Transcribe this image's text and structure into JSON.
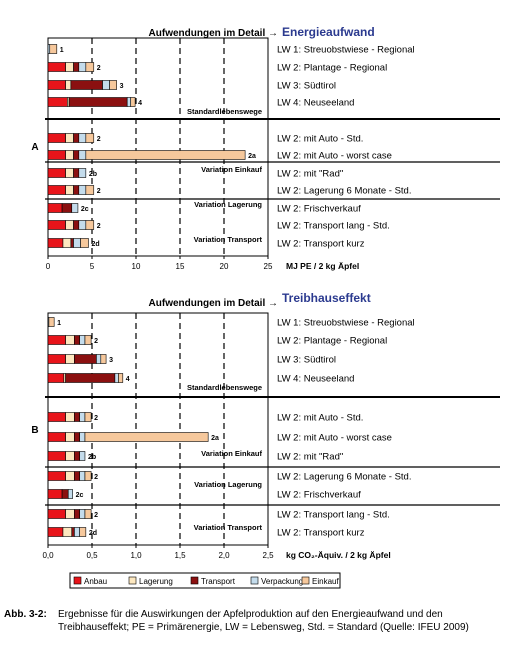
{
  "colors": {
    "Anbau": "#e8141a",
    "Lagerung": "#fde8c0",
    "Transport": "#8b1010",
    "Verpackung": "#c4dcec",
    "Einkauf": "#f6c89c"
  },
  "chart_data": [
    {
      "type": "bar",
      "orientation": "horizontal",
      "stacked": true,
      "title": "Energieaufwand",
      "panel_label": "A",
      "header": "Aufwendungen im Detail",
      "header_arrow": "→",
      "xlabel": "MJ PE / 2 kg Äpfel",
      "xlim": [
        0,
        25
      ],
      "xticks": [
        "0",
        "5",
        "10",
        "15",
        "20",
        "25"
      ],
      "tick_values": [
        0,
        5,
        10,
        15,
        20,
        25
      ],
      "segments": [
        "Anbau",
        "Lagerung",
        "Transport",
        "Verpackung",
        "Einkauf"
      ],
      "groups": [
        {
          "label": "Standardlebenswege",
          "rows": [
            0,
            1,
            2,
            3
          ]
        },
        {
          "label": "Variation Einkauf",
          "rows": [
            4,
            5,
            6
          ]
        },
        {
          "label": "Variation Lagerung",
          "rows": [
            7,
            8
          ]
        },
        {
          "label": "Variation Transport",
          "rows": [
            9,
            10
          ]
        }
      ],
      "rows": [
        {
          "tag": "1",
          "category": "LW 1: Streuobstwiese - Regional",
          "values": [
            0,
            0,
            0,
            0.2,
            0.8
          ]
        },
        {
          "tag": "2",
          "category": "LW 2: Plantage - Regional",
          "values": [
            2.0,
            0.9,
            0.6,
            0.8,
            0.9
          ]
        },
        {
          "tag": "3",
          "category": "LW 3: Südtirol",
          "values": [
            2.0,
            0.6,
            3.6,
            0.8,
            0.8
          ]
        },
        {
          "tag": "4",
          "category": "LW 4: Neuseeland",
          "values": [
            2.2,
            0.2,
            6.6,
            0.4,
            0.5
          ]
        },
        {
          "tag": "2",
          "category": "LW 2: mit Auto - Std.",
          "values": [
            2.0,
            0.9,
            0.6,
            0.8,
            0.9
          ]
        },
        {
          "tag": "2a",
          "category": "LW 2: mit Auto - worst case",
          "values": [
            2.0,
            0.9,
            0.6,
            0.8,
            18.1
          ]
        },
        {
          "tag": "2b",
          "category": "LW 2: mit \"Rad\"",
          "values": [
            2.0,
            0.9,
            0.6,
            0.8,
            0.0
          ]
        },
        {
          "tag": "2",
          "category": "LW 2: Lagerung 6 Monate - Std.",
          "values": [
            2.0,
            0.9,
            0.6,
            0.8,
            0.9
          ]
        },
        {
          "tag": "2c",
          "category": "LW 2: Frischverkauf",
          "values": [
            1.6,
            0.0,
            1.1,
            0.7,
            0.0
          ]
        },
        {
          "tag": "2",
          "category": "LW 2: Transport lang - Std.",
          "values": [
            2.0,
            0.9,
            0.6,
            0.8,
            0.9
          ]
        },
        {
          "tag": "2d",
          "category": "LW 2: Transport kurz",
          "values": [
            1.7,
            0.9,
            0.3,
            0.8,
            0.9
          ]
        }
      ]
    },
    {
      "type": "bar",
      "orientation": "horizontal",
      "stacked": true,
      "title": "Treibhauseffekt",
      "panel_label": "B",
      "header": "Aufwendungen im Detail",
      "header_arrow": "→",
      "xlabel": "kg CO₂-Äquiv. / 2 kg Äpfel",
      "xlim": [
        0,
        2.5
      ],
      "xticks": [
        "0,0",
        "0,5",
        "1,0",
        "1,5",
        "2,0",
        "2,5"
      ],
      "tick_values": [
        0,
        0.5,
        1.0,
        1.5,
        2.0,
        2.5
      ],
      "segments": [
        "Anbau",
        "Lagerung",
        "Transport",
        "Verpackung",
        "Einkauf"
      ],
      "groups": [
        {
          "label": "Standardlebenswege",
          "rows": [
            0,
            1,
            2,
            3
          ]
        },
        {
          "label": "Variation Einkauf",
          "rows": [
            4,
            5,
            6
          ]
        },
        {
          "label": "Variation Lagerung",
          "rows": [
            7,
            8
          ]
        },
        {
          "label": "Variation Transport",
          "rows": [
            9,
            10
          ]
        }
      ],
      "rows": [
        {
          "tag": "1",
          "category": "LW 1: Streuobstwiese - Regional",
          "values": [
            0,
            0,
            0,
            0.01,
            0.06
          ]
        },
        {
          "tag": "2",
          "category": "LW 2: Plantage - Regional",
          "values": [
            0.2,
            0.1,
            0.06,
            0.06,
            0.07
          ]
        },
        {
          "tag": "3",
          "category": "LW 3: Südtirol",
          "values": [
            0.2,
            0.1,
            0.25,
            0.05,
            0.06
          ]
        },
        {
          "tag": "4",
          "category": "LW 4: Neuseeland",
          "values": [
            0.18,
            0.02,
            0.56,
            0.04,
            0.05
          ]
        },
        {
          "tag": "2",
          "category": "LW 2: mit Auto - Std.",
          "values": [
            0.2,
            0.1,
            0.06,
            0.06,
            0.07
          ]
        },
        {
          "tag": "2a",
          "category": "LW 2: mit Auto - worst case",
          "values": [
            0.2,
            0.1,
            0.06,
            0.06,
            1.4
          ]
        },
        {
          "tag": "2b",
          "category": "LW 2: mit \"Rad\"",
          "values": [
            0.2,
            0.1,
            0.06,
            0.06,
            0.0
          ]
        },
        {
          "tag": "2",
          "category": "LW 2: Lagerung 6 Monate - Std.",
          "values": [
            0.2,
            0.1,
            0.06,
            0.06,
            0.07
          ]
        },
        {
          "tag": "2c",
          "category": "LW 2: Frischverkauf",
          "values": [
            0.16,
            0.0,
            0.07,
            0.05,
            0.0
          ]
        },
        {
          "tag": "2",
          "category": "LW 2: Transport lang - Std.",
          "values": [
            0.2,
            0.1,
            0.06,
            0.06,
            0.07
          ]
        },
        {
          "tag": "2d",
          "category": "LW 2: Transport kurz",
          "values": [
            0.17,
            0.1,
            0.03,
            0.06,
            0.07
          ]
        }
      ]
    }
  ],
  "legend": [
    "Anbau",
    "Lagerung",
    "Transport",
    "Verpackung",
    "Einkauf"
  ],
  "caption": {
    "label": "Abb. 3-2:",
    "text": "Ergebnisse für die Auswirkungen der Apfelproduktion auf den Energieaufwand und den Treibhauseffekt; PE = Primärenergie, LW = Lebensweg, Std. = Standard (Quelle: IFEU 2009)"
  }
}
